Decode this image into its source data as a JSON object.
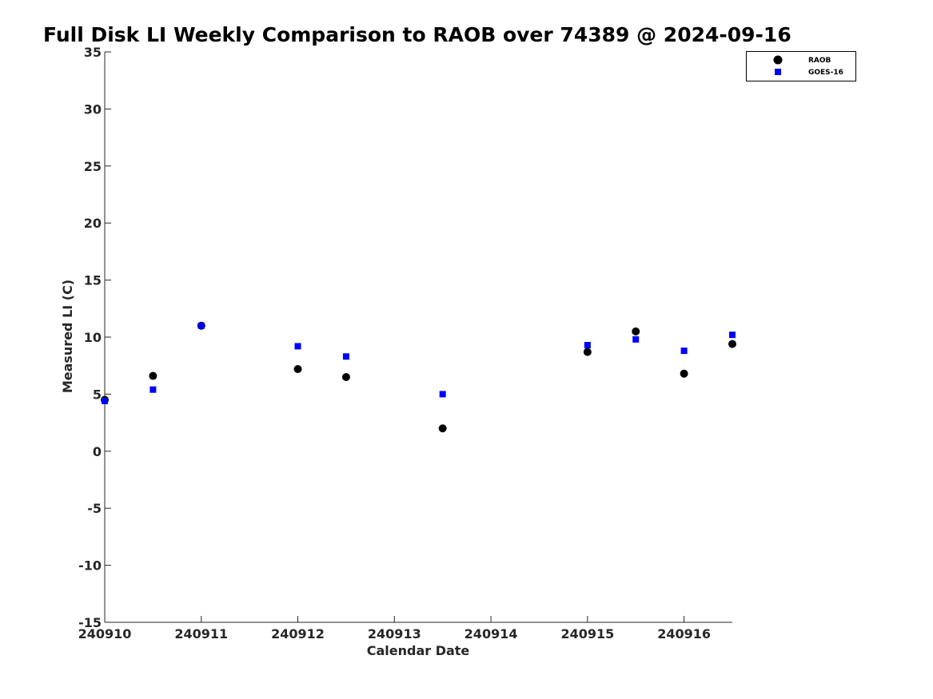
{
  "chart_data": {
    "type": "scatter",
    "title": "Full Disk LI Weekly Comparison to RAOB over 74389 @ 2024-09-16",
    "xlabel": "Calendar Date",
    "ylabel": "Measured LI (C)",
    "xlim": [
      240910,
      240916.5
    ],
    "ylim": [
      -15,
      35
    ],
    "x_ticks": [
      240910,
      240911,
      240912,
      240913,
      240914,
      240915,
      240916
    ],
    "x_tick_labels": [
      "240910",
      "240911",
      "240912",
      "240913",
      "240914",
      "240915",
      "240916"
    ],
    "y_ticks": [
      35,
      30,
      25,
      20,
      15,
      10,
      5,
      0,
      -5,
      -10,
      -15
    ],
    "y_tick_labels": [
      "35",
      "30",
      "25",
      "20",
      "15",
      "10",
      "5",
      "0",
      "-5",
      "-10",
      "-15"
    ],
    "grid": false,
    "legend_position": "top-right",
    "series": [
      {
        "name": "RAOB",
        "marker": "circle",
        "color": "#000000",
        "x": [
          240910,
          240910.5,
          240911,
          240912,
          240912.5,
          240913.5,
          240915,
          240915.5,
          240916,
          240916.5
        ],
        "y": [
          4.5,
          6.6,
          11.0,
          7.2,
          6.5,
          2.0,
          8.7,
          10.5,
          6.8,
          9.4
        ]
      },
      {
        "name": "GOES-16",
        "marker": "square",
        "color": "#0000ff",
        "x": [
          240910,
          240910.5,
          240911,
          240912,
          240912.5,
          240913.5,
          240915,
          240915.5,
          240916,
          240916.5
        ],
        "y": [
          4.4,
          5.4,
          11.0,
          9.2,
          8.3,
          5.0,
          9.3,
          9.8,
          8.8,
          10.2
        ]
      }
    ]
  }
}
